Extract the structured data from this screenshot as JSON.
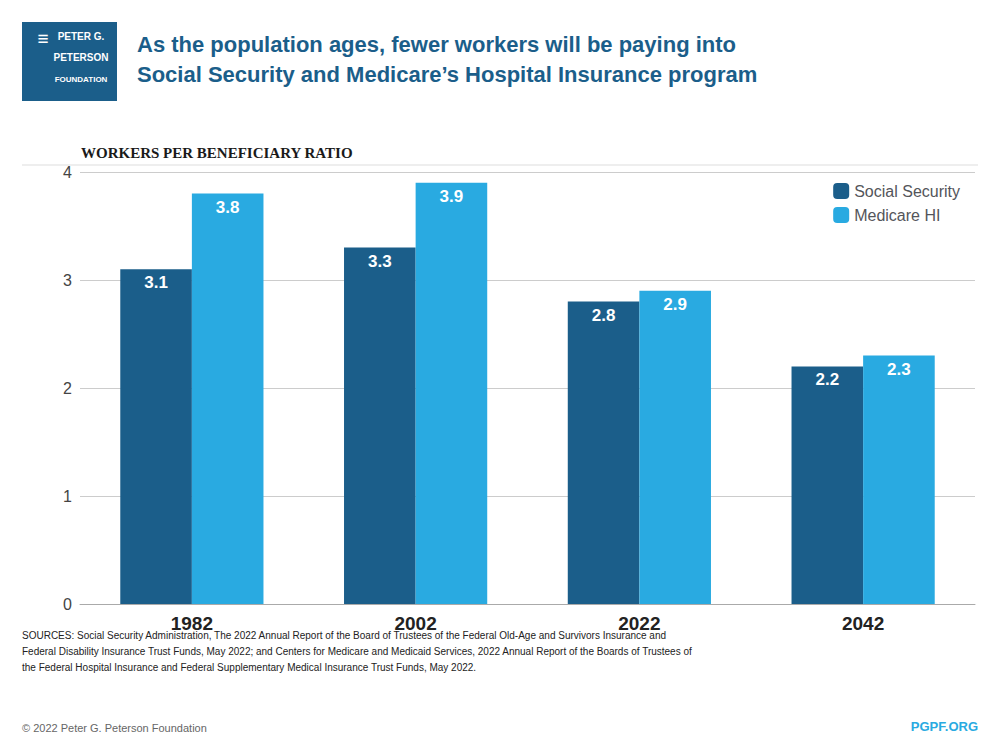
{
  "chart_data": {
    "type": "bar",
    "title": "As the population ages, fewer workers will be paying into\nSocial Security and Medicare’s Hospital Insurance program",
    "subtitle": "WORKERS PER BENEFICIARY RATIO",
    "categories": [
      "1982",
      "2002",
      "2022",
      "2042"
    ],
    "series": [
      {
        "name": "Social Security",
        "color": "#1b5e8a",
        "values": [
          3.1,
          3.3,
          2.8,
          2.2
        ]
      },
      {
        "name": "Medicare HI",
        "color": "#29aae1",
        "values": [
          3.8,
          3.9,
          2.9,
          2.3
        ]
      }
    ],
    "ylim": [
      0,
      4
    ],
    "yticks": [
      0,
      1,
      2,
      3,
      4
    ],
    "grid": true,
    "legend": "upper right",
    "data_labels": true,
    "annotations": [
      "≡",
      "PETER G.",
      "PETERSON",
      "FOUNDATION",
      "SOURCES: Social Security Administration, The 2022 Annual Report of the Board of Trustees of the Federal Old-Age and Survivors Insurance and",
      "Federal Disability Insurance Trust Funds, May 2022; and Centers for Medicare and Medicaid Services, 2022 Annual Report of the Boards of Trustees of",
      "the Federal Hospital Insurance and Federal Supplementary Medical Insurance Trust Funds, May 2022.",
      "© 2022 Peter G. Peterson Foundation",
      "PGPF.ORG"
    ]
  }
}
